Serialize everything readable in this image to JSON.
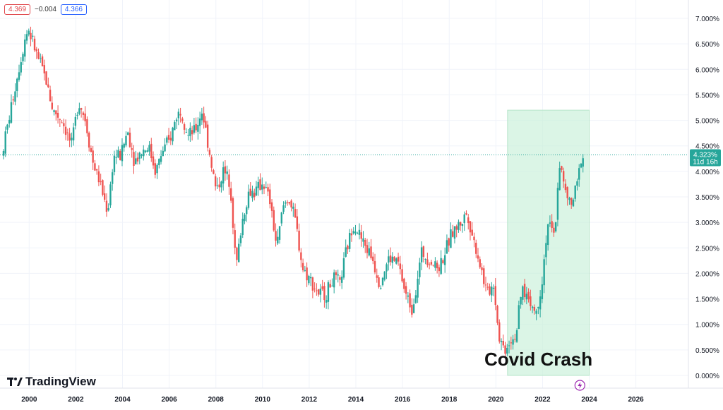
{
  "header": {
    "open_value": "4.369",
    "change_value": "−0.004",
    "close_value": "4.366"
  },
  "price_label": {
    "value": "4.323%",
    "countdown": "11d 16h"
  },
  "annotation": {
    "text": "Covid Crash"
  },
  "branding": {
    "name": "TradingView"
  },
  "colors": {
    "up": "#26a69a",
    "down": "#ef5350",
    "highlight": "#c8f0d8",
    "price_line": "#26a69a"
  },
  "chart_data": {
    "type": "candlestick",
    "title": "",
    "xlabel": "",
    "ylabel": "",
    "x_range": [
      1998.75,
      2028.25
    ],
    "ylim": [
      -0.0005,
      0.072
    ],
    "y_ticks": [
      "7.000%",
      "6.500%",
      "6.000%",
      "5.500%",
      "5.000%",
      "4.500%",
      "4.000%",
      "3.500%",
      "3.000%",
      "2.500%",
      "2.000%",
      "1.500%",
      "1.000%",
      "0.500%",
      "0.000%"
    ],
    "x_ticks": [
      "2000",
      "2002",
      "2004",
      "2006",
      "2008",
      "2010",
      "2012",
      "2014",
      "2016",
      "2018",
      "2020",
      "2022",
      "2024",
      "2026"
    ],
    "grid": true,
    "current_price": 0.04323,
    "highlight_range": {
      "x_start": 2020.5,
      "x_end": 2024.0,
      "y_low": 0.0,
      "y_high": 0.052
    },
    "series_path": [
      [
        1998.9,
        0.043
      ],
      [
        1999.2,
        0.05
      ],
      [
        1999.5,
        0.057
      ],
      [
        1999.9,
        0.066
      ],
      [
        2000.05,
        0.068
      ],
      [
        2000.4,
        0.063
      ],
      [
        2000.8,
        0.058
      ],
      [
        2001.1,
        0.052
      ],
      [
        2001.5,
        0.05
      ],
      [
        2001.9,
        0.045
      ],
      [
        2002.2,
        0.054
      ],
      [
        2002.5,
        0.05
      ],
      [
        2002.8,
        0.042
      ],
      [
        2003.1,
        0.038
      ],
      [
        2003.45,
        0.032
      ],
      [
        2003.7,
        0.043
      ],
      [
        2004.0,
        0.043
      ],
      [
        2004.3,
        0.048
      ],
      [
        2004.6,
        0.042
      ],
      [
        2004.9,
        0.044
      ],
      [
        2005.2,
        0.045
      ],
      [
        2005.5,
        0.04
      ],
      [
        2005.8,
        0.044
      ],
      [
        2006.1,
        0.046
      ],
      [
        2006.4,
        0.051
      ],
      [
        2006.6,
        0.052
      ],
      [
        2006.9,
        0.047
      ],
      [
        2007.2,
        0.048
      ],
      [
        2007.5,
        0.052
      ],
      [
        2007.8,
        0.044
      ],
      [
        2008.1,
        0.036
      ],
      [
        2008.4,
        0.04
      ],
      [
        2008.7,
        0.038
      ],
      [
        2008.95,
        0.021
      ],
      [
        2009.2,
        0.03
      ],
      [
        2009.5,
        0.036
      ],
      [
        2009.8,
        0.036
      ],
      [
        2010.1,
        0.038
      ],
      [
        2010.4,
        0.034
      ],
      [
        2010.7,
        0.025
      ],
      [
        2010.95,
        0.033
      ],
      [
        2011.2,
        0.035
      ],
      [
        2011.5,
        0.03
      ],
      [
        2011.8,
        0.021
      ],
      [
        2012.1,
        0.019
      ],
      [
        2012.5,
        0.016
      ],
      [
        2012.8,
        0.016
      ],
      [
        2013.1,
        0.019
      ],
      [
        2013.4,
        0.018
      ],
      [
        2013.7,
        0.025
      ],
      [
        2014.0,
        0.03
      ],
      [
        2014.4,
        0.026
      ],
      [
        2014.8,
        0.023
      ],
      [
        2015.1,
        0.018
      ],
      [
        2015.5,
        0.023
      ],
      [
        2015.9,
        0.022
      ],
      [
        2016.2,
        0.016
      ],
      [
        2016.5,
        0.013
      ],
      [
        2016.9,
        0.024
      ],
      [
        2017.2,
        0.023
      ],
      [
        2017.6,
        0.021
      ],
      [
        2017.9,
        0.024
      ],
      [
        2018.2,
        0.028
      ],
      [
        2018.6,
        0.03
      ],
      [
        2018.85,
        0.032
      ],
      [
        2019.1,
        0.027
      ],
      [
        2019.4,
        0.022
      ],
      [
        2019.7,
        0.016
      ],
      [
        2020.0,
        0.018
      ],
      [
        2020.2,
        0.008
      ],
      [
        2020.45,
        0.005
      ],
      [
        2020.7,
        0.007
      ],
      [
        2020.95,
        0.008
      ],
      [
        2021.2,
        0.017
      ],
      [
        2021.5,
        0.015
      ],
      [
        2021.8,
        0.012
      ],
      [
        2022.05,
        0.018
      ],
      [
        2022.3,
        0.03
      ],
      [
        2022.6,
        0.027
      ],
      [
        2022.8,
        0.042
      ],
      [
        2023.05,
        0.036
      ],
      [
        2023.3,
        0.033
      ],
      [
        2023.55,
        0.037
      ],
      [
        2023.75,
        0.043
      ]
    ]
  }
}
